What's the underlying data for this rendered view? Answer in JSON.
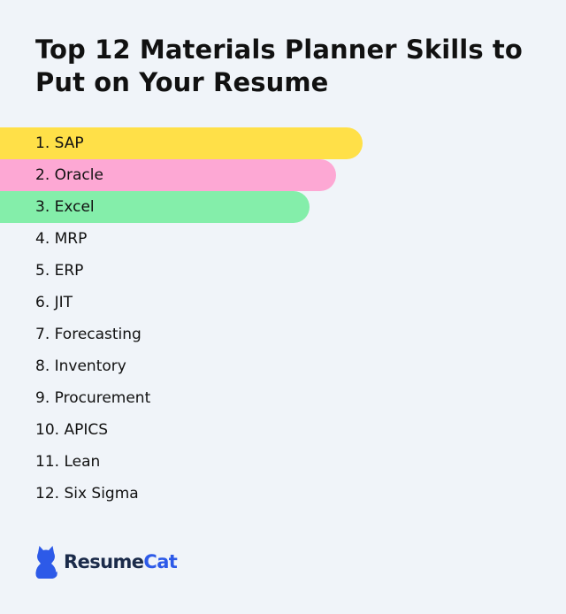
{
  "title": "Top 12 Materials Planner Skills to Put on Your Resume",
  "skills": [
    {
      "label": "1. SAP",
      "highlight": "#ffe048",
      "bar_fraction": 0.64
    },
    {
      "label": "2. Oracle",
      "highlight": "#fda8d4",
      "bar_fraction": 0.594
    },
    {
      "label": "3. Excel",
      "highlight": "#84eeaa",
      "bar_fraction": 0.547
    },
    {
      "label": "4. MRP"
    },
    {
      "label": "5. ERP"
    },
    {
      "label": "6. JIT"
    },
    {
      "label": "7. Forecasting"
    },
    {
      "label": "8. Inventory"
    },
    {
      "label": "9. Procurement"
    },
    {
      "label": "10. APICS"
    },
    {
      "label": "11. Lean"
    },
    {
      "label": "12. Six Sigma"
    }
  ],
  "logo": {
    "icon": "cat-icon",
    "text_part1": "Resume",
    "text_part2": "Cat",
    "brand_color": "#2d5ae8",
    "text_color": "#1b2b4a"
  },
  "colors": {
    "background": "#f0f4f9",
    "text": "#111111"
  }
}
